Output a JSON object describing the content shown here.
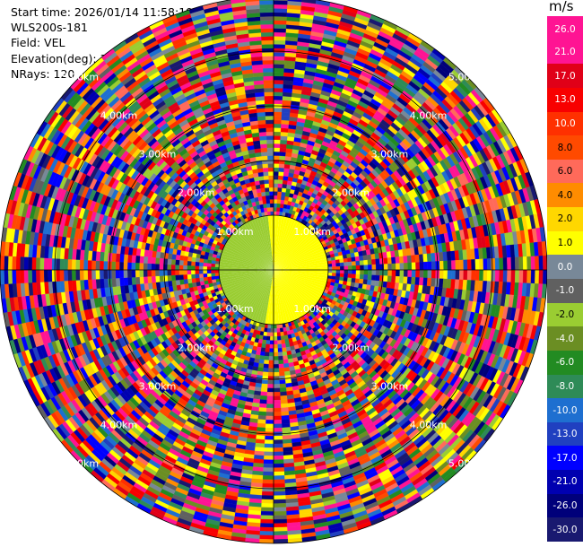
{
  "header": {
    "start_time": "Start time: 2026/01/14 11:58:19",
    "site": "WLS200s-181",
    "field": "Field: VEL",
    "elevation": "Elevation(deg): 35.00",
    "nrays": "NRays: 120"
  },
  "chart_data": {
    "type": "ppi",
    "field": "VEL",
    "units": "m/s",
    "n_rays": 120,
    "n_gates": 55,
    "range_rings_km": [
      1,
      2,
      3,
      4,
      5
    ],
    "ring_labels": [
      "1.00km",
      "2.00km",
      "3.00km",
      "4.00km",
      "5.00km"
    ],
    "max_range_km": 5,
    "colorbar": {
      "label": "m/s",
      "ticks": [
        "26.0",
        "21.0",
        "17.0",
        "13.0",
        "10.0",
        "8.0",
        "6.0",
        "4.0",
        "2.0",
        "1.0",
        "0.0",
        "-1.0",
        "-2.0",
        "-4.0",
        "-6.0",
        "-8.0",
        "-10.0",
        "-13.0",
        "-17.0",
        "-21.0",
        "-26.0",
        "-30.0"
      ],
      "colors": [
        "#ff1493",
        "#ff1493",
        "#e00018",
        "#f80000",
        "#ff3000",
        "#ff4a00",
        "#ff6a5a",
        "#ff8c00",
        "#ffd700",
        "#ffff00",
        "#788898",
        "#606060",
        "#9acd32",
        "#6b8e23",
        "#228b22",
        "#2e8b57",
        "#1e6fd0",
        "#2040c0",
        "#0000ff",
        "#0000b0",
        "#00007a",
        "#191970"
      ]
    }
  }
}
